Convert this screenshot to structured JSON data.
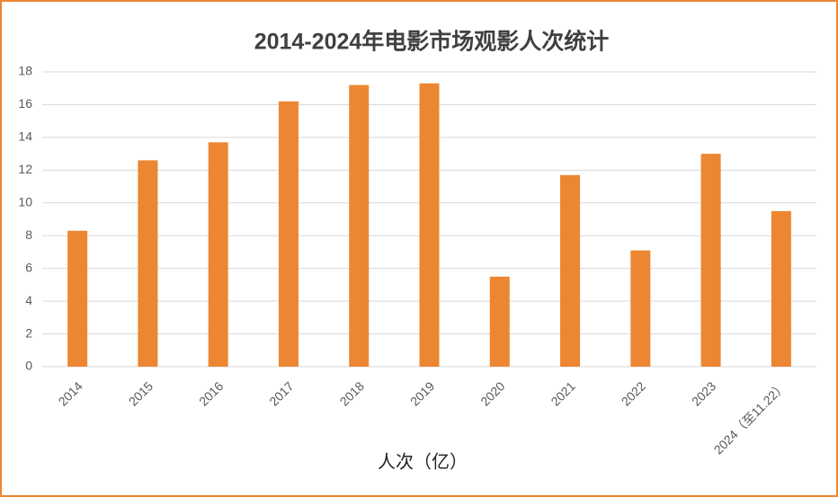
{
  "chart_data": {
    "type": "bar",
    "title": "2014-2024年电影市场观影人次统计",
    "x_label": "人次（亿）",
    "categories": [
      "2014",
      "2015",
      "2016",
      "2017",
      "2018",
      "2019",
      "2020",
      "2021",
      "2022",
      "2023",
      "2024（至11.22）"
    ],
    "values": [
      8.3,
      12.6,
      13.7,
      16.2,
      17.2,
      17.3,
      5.5,
      11.7,
      7.1,
      13.0,
      9.5
    ],
    "color": "#ed8632",
    "ylim": [
      0,
      18
    ],
    "yticks": [
      0,
      2,
      4,
      6,
      8,
      10,
      12,
      14,
      16,
      18
    ],
    "grid": true
  }
}
